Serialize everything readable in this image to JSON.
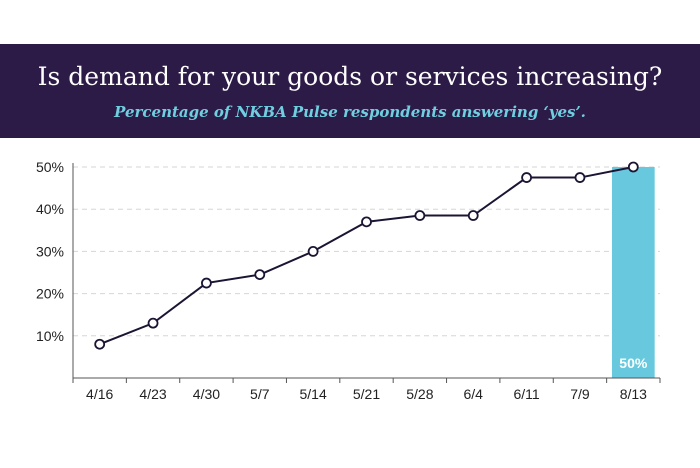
{
  "header": {
    "title": "Is demand for your goods or services increasing?",
    "subtitle": "Percentage of NKBA Pulse respondents answering ‘yes’."
  },
  "colors": {
    "banner": "#2d1b47",
    "subtitle": "#6fcfe0",
    "line": "#1c1433",
    "highlight_bar": "#68c9de",
    "grid": "#d6d6d6"
  },
  "chart_data": {
    "type": "line",
    "title": "Is demand for your goods or services increasing?",
    "subtitle": "Percentage of NKBA Pulse respondents answering ‘yes’.",
    "categories": [
      "4/16",
      "4/23",
      "4/30",
      "5/7",
      "5/14",
      "5/21",
      "5/28",
      "6/4",
      "6/11",
      "7/9",
      "8/13"
    ],
    "series": [
      {
        "name": "Answering yes",
        "values": [
          8,
          13,
          22.5,
          24.5,
          30,
          37,
          38.5,
          38.5,
          47.5,
          47.5,
          50
        ]
      }
    ],
    "ylim": [
      0,
      50
    ],
    "yticks": [
      10,
      20,
      30,
      40,
      50
    ],
    "ytick_labels": [
      "10%",
      "20%",
      "30%",
      "40%",
      "50%"
    ],
    "grid": true,
    "highlight": {
      "category": "8/13",
      "value": 50,
      "label": "50%"
    },
    "xlabel": "",
    "ylabel": ""
  }
}
